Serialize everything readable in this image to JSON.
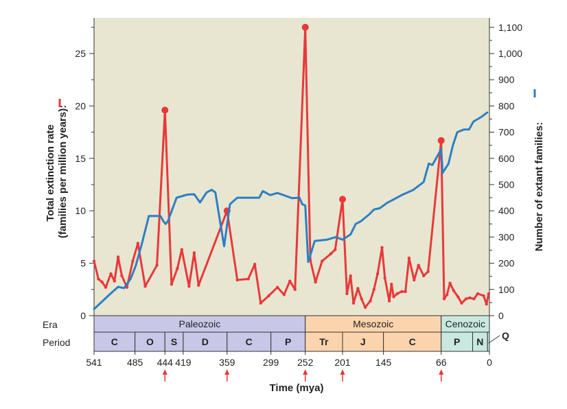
{
  "chart_data": {
    "type": "line",
    "title": "",
    "xlabel": "Time (mya)",
    "ylabel_left": "Total extinction rate (families per million years):",
    "ylabel_right": "Number of extant families:",
    "x_ticks": [
      541,
      485,
      444,
      419,
      359,
      299,
      252,
      201,
      145,
      66,
      0
    ],
    "y_left_ticks": [
      0,
      5,
      10,
      15,
      20,
      25
    ],
    "y_left_range": [
      0,
      28.4
    ],
    "y_right_ticks": [
      0,
      100,
      200,
      300,
      400,
      500,
      600,
      700,
      800,
      900,
      1000,
      1100
    ],
    "y_right_range": [
      0,
      1136
    ],
    "x_range": [
      541,
      0
    ],
    "mass_extinction_markers": [
      444,
      359,
      252,
      201,
      66
    ],
    "background_color": "#e8e6d0",
    "series": [
      {
        "name": "",
        "axis": "left",
        "color": "#e8383a",
        "marker_points": [
          [
            444,
            19.6
          ],
          [
            359,
            10.0
          ],
          [
            252,
            27.5
          ],
          [
            201,
            11.1
          ],
          [
            66,
            16.7
          ]
        ],
        "points": [
          [
            541,
            5.2
          ],
          [
            535,
            3.5
          ],
          [
            530,
            3.2
          ],
          [
            525,
            2.7
          ],
          [
            518,
            4.0
          ],
          [
            513,
            3.3
          ],
          [
            508,
            5.6
          ],
          [
            503,
            3.8
          ],
          [
            496,
            2.7
          ],
          [
            488,
            5.2
          ],
          [
            481,
            6.9
          ],
          [
            471,
            2.8
          ],
          [
            455,
            4.8
          ],
          [
            444,
            19.6
          ],
          [
            435,
            3.0
          ],
          [
            427,
            4.5
          ],
          [
            421,
            6.3
          ],
          [
            411,
            2.8
          ],
          [
            404,
            6.0
          ],
          [
            398,
            2.9
          ],
          [
            359,
            10.0
          ],
          [
            345,
            3.4
          ],
          [
            330,
            3.5
          ],
          [
            321,
            4.9
          ],
          [
            313,
            1.2
          ],
          [
            302,
            1.9
          ],
          [
            290,
            2.7
          ],
          [
            281,
            2.0
          ],
          [
            273,
            3.3
          ],
          [
            266,
            2.5
          ],
          [
            252,
            27.5
          ],
          [
            245,
            5.3
          ],
          [
            238,
            3.2
          ],
          [
            229,
            5.2
          ],
          [
            217,
            5.9
          ],
          [
            211,
            6.3
          ],
          [
            201,
            11.1
          ],
          [
            195,
            2.1
          ],
          [
            190,
            3.8
          ],
          [
            186,
            1.2
          ],
          [
            180,
            2.6
          ],
          [
            175,
            1.6
          ],
          [
            170,
            0.8
          ],
          [
            163,
            1.4
          ],
          [
            158,
            2.5
          ],
          [
            153,
            4.0
          ],
          [
            147,
            6.5
          ],
          [
            143,
            3.6
          ],
          [
            137,
            1.4
          ],
          [
            134,
            3.0
          ],
          [
            131,
            1.8
          ],
          [
            126,
            2.1
          ],
          [
            120,
            2.3
          ],
          [
            115,
            2.3
          ],
          [
            110,
            5.5
          ],
          [
            103,
            3.4
          ],
          [
            97,
            4.8
          ],
          [
            90,
            3.8
          ],
          [
            84,
            4.2
          ],
          [
            66,
            16.7
          ],
          [
            62,
            1.6
          ],
          [
            58,
            2.0
          ],
          [
            54,
            3.1
          ],
          [
            49,
            2.4
          ],
          [
            43,
            1.8
          ],
          [
            38,
            1.2
          ],
          [
            32,
            1.6
          ],
          [
            27,
            1.7
          ],
          [
            21,
            1.6
          ],
          [
            16,
            2.1
          ],
          [
            8,
            1.9
          ],
          [
            4,
            1.1
          ],
          [
            1,
            2.1
          ]
        ]
      },
      {
        "name": "",
        "axis": "right",
        "color": "#2b7fc4",
        "points": [
          [
            541,
            25
          ],
          [
            520,
            80
          ],
          [
            508,
            110
          ],
          [
            500,
            105
          ],
          [
            491,
            140
          ],
          [
            484,
            190
          ],
          [
            476,
            270
          ],
          [
            466,
            380
          ],
          [
            450,
            380
          ],
          [
            446,
            360
          ],
          [
            443,
            350
          ],
          [
            440,
            360
          ],
          [
            436,
            390
          ],
          [
            428,
            450
          ],
          [
            413,
            462
          ],
          [
            404,
            463
          ],
          [
            396,
            432
          ],
          [
            387,
            470
          ],
          [
            380,
            480
          ],
          [
            375,
            470
          ],
          [
            363,
            265
          ],
          [
            355,
            425
          ],
          [
            345,
            450
          ],
          [
            330,
            450
          ],
          [
            315,
            450
          ],
          [
            310,
            475
          ],
          [
            300,
            460
          ],
          [
            290,
            468
          ],
          [
            280,
            458
          ],
          [
            270,
            448
          ],
          [
            260,
            450
          ],
          [
            256,
            425
          ],
          [
            252,
            420
          ],
          [
            248,
            205
          ],
          [
            239,
            285
          ],
          [
            222,
            290
          ],
          [
            210,
            300
          ],
          [
            201,
            290
          ],
          [
            190,
            310
          ],
          [
            183,
            350
          ],
          [
            176,
            360
          ],
          [
            165,
            385
          ],
          [
            158,
            405
          ],
          [
            150,
            410
          ],
          [
            140,
            430
          ],
          [
            130,
            445
          ],
          [
            120,
            460
          ],
          [
            104,
            480
          ],
          [
            90,
            510
          ],
          [
            83,
            580
          ],
          [
            78,
            575
          ],
          [
            66,
            635
          ],
          [
            64,
            545
          ],
          [
            56,
            580
          ],
          [
            50,
            650
          ],
          [
            44,
            700
          ],
          [
            35,
            710
          ],
          [
            28,
            710
          ],
          [
            22,
            740
          ],
          [
            16,
            750
          ],
          [
            10,
            760
          ],
          [
            3,
            775
          ]
        ]
      }
    ],
    "eras": [
      {
        "label": "Paleozoic",
        "start": 541,
        "end": 252,
        "color": "#c9c7e8"
      },
      {
        "label": "Mesozoic",
        "start": 252,
        "end": 66,
        "color": "#fbd4ae"
      },
      {
        "label": "Cenozoic",
        "start": 66,
        "end": 0,
        "color": "#c9e8df"
      }
    ],
    "periods": [
      {
        "label": "C",
        "start": 541,
        "end": 485,
        "era": 0
      },
      {
        "label": "O",
        "start": 485,
        "end": 444,
        "era": 0
      },
      {
        "label": "S",
        "start": 444,
        "end": 419,
        "era": 0
      },
      {
        "label": "D",
        "start": 419,
        "end": 359,
        "era": 0
      },
      {
        "label": "C",
        "start": 359,
        "end": 299,
        "era": 0
      },
      {
        "label": "P",
        "start": 299,
        "end": 252,
        "era": 0
      },
      {
        "label": "Tr",
        "start": 252,
        "end": 201,
        "era": 1
      },
      {
        "label": "J",
        "start": 201,
        "end": 145,
        "era": 1
      },
      {
        "label": "C",
        "start": 145,
        "end": 66,
        "era": 1
      },
      {
        "label": "P",
        "start": 66,
        "end": 23,
        "era": 2
      },
      {
        "label": "N",
        "start": 23,
        "end": 2.6,
        "era": 2
      }
    ],
    "row_labels": {
      "era": "Era",
      "period": "Period"
    },
    "quaternary_label": "Q"
  }
}
